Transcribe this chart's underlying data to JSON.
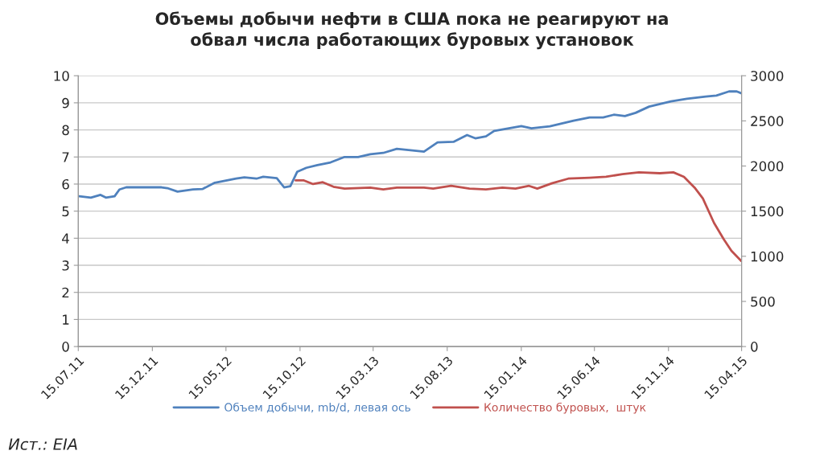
{
  "chart_data": {
    "type": "line",
    "title": "Объемы добычи нефти в США пока не реагируют на\nобвал числа работающих буровых установок",
    "xlim": [
      "2011-07-15",
      "2015-04-15"
    ],
    "xticks": [
      {
        "value": "2011-07-15",
        "label": "15.07.11"
      },
      {
        "value": "2011-12-15",
        "label": "15.12.11"
      },
      {
        "value": "2012-05-15",
        "label": "15.05.12"
      },
      {
        "value": "2012-10-15",
        "label": "15.10.12"
      },
      {
        "value": "2013-03-15",
        "label": "15.03.13"
      },
      {
        "value": "2013-08-15",
        "label": "15.08.13"
      },
      {
        "value": "2014-01-15",
        "label": "15.01.14"
      },
      {
        "value": "2014-06-15",
        "label": "15.06.14"
      },
      {
        "value": "2014-11-15",
        "label": "15.11.14"
      },
      {
        "value": "2015-04-15",
        "label": "15.04.15"
      }
    ],
    "ylim": [
      0,
      10
    ],
    "yticks": [
      0,
      1,
      2,
      3,
      4,
      5,
      6,
      7,
      8,
      9,
      10
    ],
    "y2lim": [
      0,
      3000
    ],
    "y2ticks": [
      0,
      500,
      1000,
      1500,
      2000,
      2500,
      3000
    ],
    "grid": "y",
    "legend": "bottom",
    "marker": "none",
    "line_style": "solid",
    "series": [
      {
        "name": "Объем добычи, mb/d, левая ось",
        "color": "#4f81bd",
        "x": [
          "2011-07-17",
          "2011-08-10",
          "2011-08-30",
          "2011-09-10",
          "2011-09-28",
          "2011-10-08",
          "2011-10-22",
          "2012-01-03",
          "2012-01-15",
          "2012-02-05",
          "2012-03-08",
          "2012-03-28",
          "2012-04-22",
          "2012-06-05",
          "2012-06-22",
          "2012-07-17",
          "2012-07-31",
          "2012-08-28",
          "2012-09-12",
          "2012-09-25",
          "2012-10-09",
          "2012-10-28",
          "2012-11-20",
          "2012-12-17",
          "2013-01-15",
          "2013-02-12",
          "2013-03-09",
          "2013-04-05",
          "2013-05-03",
          "2013-05-31",
          "2013-06-28",
          "2013-07-26",
          "2013-08-28",
          "2013-09-25",
          "2013-10-12",
          "2013-11-03",
          "2013-11-20",
          "2014-01-15",
          "2014-02-05",
          "2014-03-15",
          "2014-05-03",
          "2014-06-05",
          "2014-07-03",
          "2014-07-25",
          "2014-08-17",
          "2014-09-08",
          "2014-10-06",
          "2014-11-20",
          "2014-12-23",
          "2015-01-31",
          "2015-02-22",
          "2015-03-20",
          "2015-04-05",
          "2015-04-15"
        ],
        "values": [
          5.55,
          5.5,
          5.6,
          5.5,
          5.55,
          5.8,
          5.88,
          5.88,
          5.85,
          5.72,
          5.8,
          5.82,
          6.05,
          6.2,
          6.25,
          6.2,
          6.27,
          6.22,
          5.88,
          5.92,
          6.45,
          6.6,
          6.7,
          6.8,
          7.0,
          7.0,
          7.1,
          7.15,
          7.3,
          7.25,
          7.2,
          7.54,
          7.56,
          7.81,
          7.69,
          7.76,
          7.96,
          8.14,
          8.06,
          8.13,
          8.34,
          8.46,
          8.46,
          8.56,
          8.51,
          8.63,
          8.86,
          9.05,
          9.15,
          9.23,
          9.27,
          9.42,
          9.42,
          9.35
        ]
      },
      {
        "name": "Количество буровых,  штук",
        "color": "#c0504d",
        "axis": "y2",
        "x": [
          "2012-10-06",
          "2012-10-23",
          "2012-11-11",
          "2012-12-01",
          "2012-12-23",
          "2013-01-15",
          "2013-03-09",
          "2013-04-05",
          "2013-05-03",
          "2013-06-28",
          "2013-07-17",
          "2013-08-23",
          "2013-09-30",
          "2013-11-03",
          "2013-12-07",
          "2014-01-03",
          "2014-01-31",
          "2014-02-17",
          "2014-03-20",
          "2014-04-22",
          "2014-06-05",
          "2014-07-09",
          "2014-08-12",
          "2014-09-15",
          "2014-10-28",
          "2014-11-25",
          "2014-12-17",
          "2015-01-08",
          "2015-01-25",
          "2015-02-17",
          "2015-03-09",
          "2015-03-25",
          "2015-04-14"
        ],
        "values": [
          1840,
          1840,
          1800,
          1820,
          1770,
          1750,
          1760,
          1740,
          1760,
          1760,
          1750,
          1780,
          1750,
          1740,
          1760,
          1750,
          1780,
          1750,
          1810,
          1860,
          1870,
          1880,
          1910,
          1930,
          1920,
          1930,
          1880,
          1760,
          1640,
          1370,
          1190,
          1060,
          950
        ]
      }
    ],
    "annotations": [
      "Ист.: EIA"
    ]
  }
}
